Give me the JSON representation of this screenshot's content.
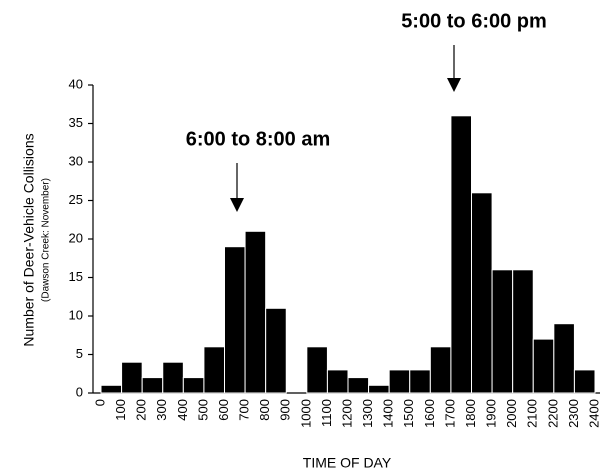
{
  "chart_data": {
    "type": "histogram",
    "annotations": [
      "6:00 to 8:00 am",
      "5:00 to 6:00 pm"
    ],
    "xlabel": "TIME OF DAY",
    "ylabel": "Number of Deer-Vehicle Collisions",
    "ylabel_sub": "(Dawson Creek: November)",
    "bins": [
      0,
      100,
      200,
      300,
      400,
      500,
      600,
      700,
      800,
      900,
      1000,
      1100,
      1200,
      1300,
      1400,
      1500,
      1600,
      1700,
      1800,
      1900,
      2000,
      2100,
      2200,
      2300,
      2400
    ],
    "values": [
      1,
      4,
      2,
      4,
      2,
      6,
      19,
      21,
      11,
      0,
      6,
      3,
      2,
      1,
      3,
      3,
      6,
      36,
      26,
      16,
      16,
      7,
      9,
      3
    ],
    "color": "#000000",
    "xlim": [
      0,
      2400
    ],
    "ylim": [
      0,
      40
    ],
    "yticks": [
      0,
      5,
      10,
      15,
      20,
      25,
      30,
      35,
      40
    ],
    "grid": false
  }
}
